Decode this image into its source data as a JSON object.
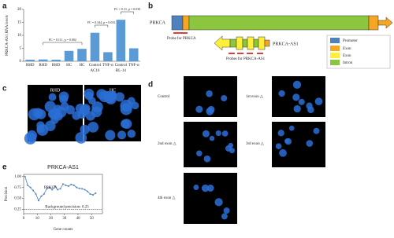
{
  "panel_labels": [
    "a",
    "b",
    "c",
    "d",
    "e"
  ],
  "chart_data": [
    {
      "type": "bar",
      "y_label": "PRKCA-AS1 RNA levels",
      "categories": [
        "RHD",
        "RHD",
        "RHD",
        "HC",
        "HC",
        "Control",
        "TNF-α",
        "Control",
        "TNF-α"
      ],
      "values": [
        0.6,
        0.7,
        0.6,
        4,
        4.8,
        11,
        3.5,
        16,
        5
      ],
      "color": "#5b9bd5",
      "ylim": [
        0,
        20
      ],
      "yticks": [
        0,
        5,
        10,
        15,
        20
      ],
      "groups": [
        "AC16",
        "RL-14"
      ],
      "annotations": [
        "FC = 0.111, p = 0.002",
        "FC = 0.344, p = 0.033",
        "FC = 0.31, p = 0.039"
      ]
    },
    {
      "type": "line",
      "title": "PRKCA-AS1",
      "y_label": "Precision",
      "x_label": "Gene counts",
      "series": [
        {
          "name": "PRKCA",
          "color": "#4f81bd",
          "x": [
            1,
            3,
            5,
            7,
            9,
            11,
            13,
            15,
            17,
            19,
            21,
            23,
            25,
            27,
            29,
            31,
            33,
            35,
            37,
            39,
            41,
            43,
            45,
            47,
            49,
            51,
            53
          ],
          "values": [
            1.0,
            0.8,
            0.75,
            0.68,
            0.6,
            0.45,
            0.55,
            0.6,
            0.72,
            0.75,
            0.7,
            0.78,
            0.7,
            0.72,
            0.83,
            0.8,
            0.78,
            0.82,
            0.8,
            0.75,
            0.73,
            0.72,
            0.7,
            0.66,
            0.6,
            0.58,
            0.62
          ]
        }
      ],
      "baseline": 0.25,
      "baseline_label": "Background precision: 0.25",
      "xlim": [
        0,
        58
      ],
      "ylim": [
        0.15,
        1.05
      ],
      "xticks": [
        0,
        10,
        20,
        30,
        40,
        50
      ],
      "yticks": [
        {
          "value": 0.25,
          "label": "0.25"
        },
        {
          "value": 0.5,
          "label": "0.50"
        },
        {
          "value": 0.75,
          "label": "0.75"
        },
        {
          "value": 1,
          "label": "1.00"
        }
      ]
    }
  ],
  "diagram": {
    "gene": "PRKCA",
    "probe_gene": "Probe for PRKCA",
    "antisense": "PRKCA-AS1",
    "probe_antisense": "Probes for PRKCA-AS1",
    "legend": [
      "Promoter",
      "Exon",
      "Exon",
      "Intron"
    ]
  },
  "fish": {
    "labels": [
      "RHD",
      "HC"
    ]
  },
  "confocal": {
    "labels": [
      "Control",
      "1st exon △",
      "2nd exon △",
      "3rd exon △",
      "4th exon △"
    ]
  }
}
